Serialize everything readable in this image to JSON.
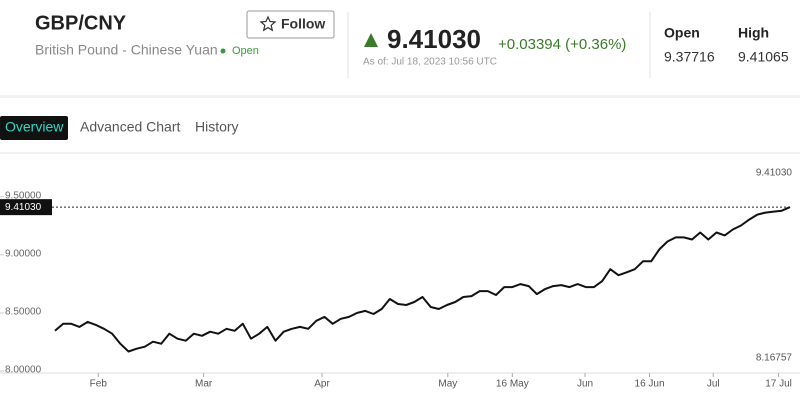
{
  "header": {
    "symbol": "GBP/CNY",
    "name": "British Pound - Chinese Yuan",
    "status": "Open",
    "follow": "Follow",
    "price": "9.41030",
    "change": "+0.03394 (+0.36%)",
    "as_of": "As of: Jul 18, 2023 10:56 UTC",
    "stats": [
      {
        "label": "Open",
        "value": "9.37716"
      },
      {
        "label": "High",
        "value": "9.41065"
      }
    ]
  },
  "tabs": [
    "Overview",
    "Advanced Chart",
    "History"
  ],
  "chart_data": {
    "type": "line",
    "color": "#111111",
    "values": [
      8.346,
      8.406,
      8.406,
      8.38,
      8.423,
      8.397,
      8.363,
      8.321,
      8.235,
      8.168,
      8.192,
      8.209,
      8.252,
      8.235,
      8.321,
      8.278,
      8.261,
      8.321,
      8.303,
      8.338,
      8.321,
      8.363,
      8.346,
      8.406,
      8.278,
      8.321,
      8.38,
      8.261,
      8.338,
      8.363,
      8.38,
      8.363,
      8.432,
      8.466,
      8.406,
      8.449,
      8.466,
      8.5,
      8.517,
      8.491,
      8.534,
      8.62,
      8.577,
      8.568,
      8.594,
      8.637,
      8.551,
      8.534,
      8.568,
      8.594,
      8.637,
      8.645,
      8.688,
      8.688,
      8.654,
      8.722,
      8.722,
      8.748,
      8.731,
      8.662,
      8.705,
      8.731,
      8.739,
      8.722,
      8.748,
      8.722,
      8.722,
      8.774,
      8.876,
      8.825,
      8.85,
      8.876,
      8.944,
      8.944,
      9.047,
      9.115,
      9.15,
      9.15,
      9.132,
      9.192,
      9.132,
      9.192,
      9.167,
      9.218,
      9.252,
      9.303,
      9.346,
      9.363,
      9.372,
      9.38,
      9.4103
    ],
    "xlim": [
      0,
      90
    ],
    "xticks": [
      {
        "value": 5.3,
        "label": "Feb"
      },
      {
        "value": 18.2,
        "label": "Mar"
      },
      {
        "value": 32.7,
        "label": "Apr"
      },
      {
        "value": 48.1,
        "label": "May"
      },
      {
        "value": 56,
        "label": "16 May"
      },
      {
        "value": 64.9,
        "label": "Jun"
      },
      {
        "value": 72.8,
        "label": "16 Jun"
      },
      {
        "value": 80.6,
        "label": "Jul"
      },
      {
        "value": 88.6,
        "label": "17 Jul"
      }
    ],
    "ylim": [
      7.983,
      9.859
    ],
    "yticks": [
      {
        "value": 8,
        "label": "8.00000"
      },
      {
        "value": 8.5,
        "label": "8.50000"
      },
      {
        "value": 9,
        "label": "9.00000"
      },
      {
        "value": 9.5,
        "label": "9.50000"
      }
    ],
    "current": {
      "value": 9.4103,
      "label": "9.41030"
    },
    "max": {
      "value": 9.4103,
      "label": "9.41030"
    },
    "min": {
      "value": 8.16757,
      "label": "8.16757"
    }
  }
}
